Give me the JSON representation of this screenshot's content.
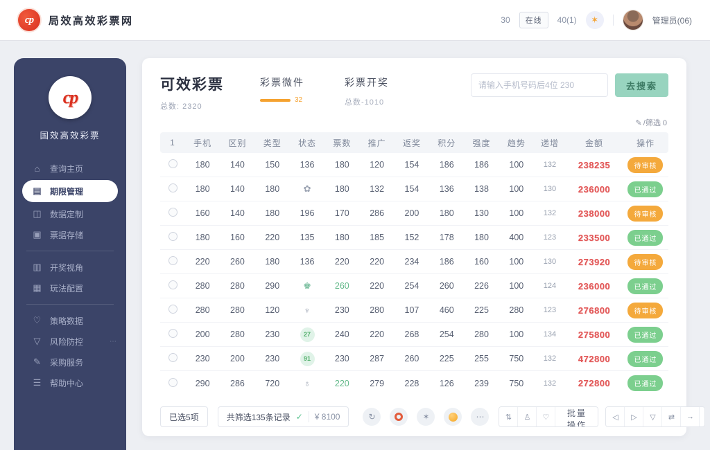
{
  "topbar": {
    "logo_monogram": "cp",
    "brand": "局效高效彩票网",
    "count": "30",
    "status_badge": "在线",
    "notice": "40(1)",
    "trophy_icon": "✶",
    "user_name": "管理员(06)"
  },
  "sidebar": {
    "logo_monogram": "cp",
    "app_name": "国效高效彩票",
    "items": [
      {
        "name": "home",
        "icon": "⌂",
        "label": "查询主页",
        "active": false,
        "divider_after": false
      },
      {
        "name": "period",
        "icon": "▤",
        "label": "期限管理",
        "active": true,
        "divider_after": false
      },
      {
        "name": "stats",
        "icon": "◫",
        "label": "数据定制",
        "active": false,
        "divider_after": false
      },
      {
        "name": "tickets",
        "icon": "▣",
        "label": "票据存储",
        "active": false,
        "divider_after": true
      },
      {
        "name": "draws",
        "icon": "▥",
        "label": "开奖视角",
        "active": false,
        "divider_after": false
      },
      {
        "name": "plays",
        "icon": "▦",
        "label": "玩法配置",
        "active": false,
        "divider_after": true
      },
      {
        "name": "strategy",
        "icon": "♡",
        "label": "策略数据",
        "active": false,
        "divider_after": false
      },
      {
        "name": "risk",
        "icon": "▽",
        "label": "风险防控",
        "active": false,
        "divider_after": false,
        "extra": "⋯"
      },
      {
        "name": "service",
        "icon": "✎",
        "label": "采购服务",
        "active": false,
        "divider_after": false
      },
      {
        "name": "help",
        "icon": "☰",
        "label": "帮助中心",
        "active": false,
        "divider_after": false
      }
    ]
  },
  "main": {
    "title": "可效彩票",
    "title_sub": "总数: 2320",
    "tabs": [
      {
        "label": "彩票微件",
        "active": true,
        "badge": "32"
      },
      {
        "label": "彩票开奖",
        "active": false,
        "sub": "总数-1010"
      }
    ],
    "search": {
      "placeholder": "请输入手机号码后4位 230",
      "button": "去搜索"
    },
    "filter_note": {
      "icon": "✎",
      "text": "/筛选 0"
    },
    "table": {
      "headers": [
        "1",
        "手机",
        "区别",
        "类型",
        "状态",
        "票数",
        "推广",
        "返奖",
        "积分",
        "强度",
        "趋势",
        "递增",
        "金额",
        "操作"
      ],
      "rows": [
        {
          "cells": [
            "180",
            "140",
            "150",
            "136",
            "180",
            "120",
            "154",
            "186",
            "186",
            "100"
          ],
          "muted": "132",
          "amount": "238235",
          "action": {
            "label": "待审核",
            "color": "orange"
          }
        },
        {
          "cells": [
            "180",
            "140",
            "180",
            {
              "icon": "flower",
              "glyph": "✿",
              "type": "plain"
            },
            "180",
            "132",
            "154",
            "136",
            "138",
            "100"
          ],
          "muted": "130",
          "amount": "236000",
          "action": {
            "label": "已通过",
            "color": "green"
          }
        },
        {
          "cells": [
            "160",
            "140",
            "180",
            "196",
            "170",
            "286",
            "200",
            "180",
            "130",
            "100"
          ],
          "muted": "132",
          "amount": "238000",
          "action": {
            "label": "待审核",
            "color": "orange"
          }
        },
        {
          "cells": [
            "180",
            "160",
            "220",
            "135",
            "180",
            "185",
            "152",
            "178",
            "180",
            "400"
          ],
          "muted": "123",
          "amount": "233500",
          "action": {
            "label": "已通过",
            "color": "green"
          }
        },
        {
          "cells": [
            "220",
            "260",
            "180",
            "136",
            "220",
            "220",
            "234",
            "186",
            "160",
            "100"
          ],
          "muted": "130",
          "amount": "273920",
          "action": {
            "label": "待审核",
            "color": "orange"
          }
        },
        {
          "cells": [
            "280",
            "280",
            "290",
            {
              "icon": "stamp",
              "glyph": "♚",
              "type": "plain-green"
            },
            {
              "text": "260",
              "color": "green"
            },
            "220",
            "254",
            "260",
            "226",
            "100"
          ],
          "muted": "124",
          "amount": "236000",
          "action": {
            "label": "已通过",
            "color": "green"
          }
        },
        {
          "cells": [
            "280",
            "280",
            "120",
            {
              "icon": "anchor",
              "glyph": "♆",
              "type": "plain"
            },
            "230",
            "280",
            "107",
            "460",
            "225",
            "280"
          ],
          "muted": "123",
          "amount": "276800",
          "action": {
            "label": "待审核",
            "color": "orange"
          }
        },
        {
          "cells": [
            "200",
            "280",
            "230",
            {
              "icon": "badge-27",
              "text": "27",
              "type": "badge"
            },
            "240",
            "220",
            "268",
            "254",
            "280",
            "100"
          ],
          "muted": "134",
          "amount": "275800",
          "action": {
            "label": "已通过",
            "color": "green"
          }
        },
        {
          "cells": [
            "230",
            "200",
            "230",
            {
              "icon": "badge-91",
              "text": "91",
              "type": "badge"
            },
            "230",
            "287",
            "260",
            "225",
            "255",
            "750"
          ],
          "muted": "132",
          "amount": "472800",
          "action": {
            "label": "已通过",
            "color": "green"
          }
        },
        {
          "cells": [
            "290",
            "286",
            "720",
            {
              "icon": "tree",
              "glyph": "♁",
              "type": "plain"
            },
            {
              "text": "220",
              "color": "green"
            },
            "279",
            "228",
            "126",
            "239",
            "750"
          ],
          "muted": "132",
          "amount": "272800",
          "action": {
            "label": "已通过",
            "color": "green"
          }
        }
      ]
    },
    "footer": {
      "selected_label": "已选5项",
      "summary_label": "共筛选135条记录",
      "check_icon": "✓",
      "amount_label": "¥ 8100",
      "circle_buttons": [
        {
          "name": "refresh",
          "glyph": "↻",
          "style": "plain"
        },
        {
          "name": "record",
          "glyph": "",
          "style": "ring-red"
        },
        {
          "name": "favorite",
          "glyph": "✶",
          "style": "plain"
        },
        {
          "name": "alert",
          "glyph": "",
          "style": "dot-orange"
        },
        {
          "name": "more",
          "glyph": "⋯",
          "style": "plain"
        }
      ],
      "tool_buttons": [
        {
          "name": "sort",
          "glyph": "⇅"
        },
        {
          "name": "user",
          "glyph": "♙"
        },
        {
          "name": "heart",
          "glyph": "♡"
        }
      ],
      "bulk_button": "批量操作",
      "pager_buttons": [
        {
          "name": "prev",
          "glyph": "◁"
        },
        {
          "name": "next",
          "glyph": "▷"
        },
        {
          "name": "down",
          "glyph": "▽"
        },
        {
          "name": "swap",
          "glyph": "⇄"
        },
        {
          "name": "forward",
          "glyph": "→"
        },
        {
          "name": "expand",
          "glyph": "∨"
        }
      ]
    }
  },
  "colors": {
    "sidebar": "#3B4468",
    "accent_orange": "#F5A230",
    "button_teal": "#98D4BF",
    "amount_red": "#E25757",
    "pill_green": "#7CCF8E",
    "pill_orange": "#F4A93C"
  }
}
